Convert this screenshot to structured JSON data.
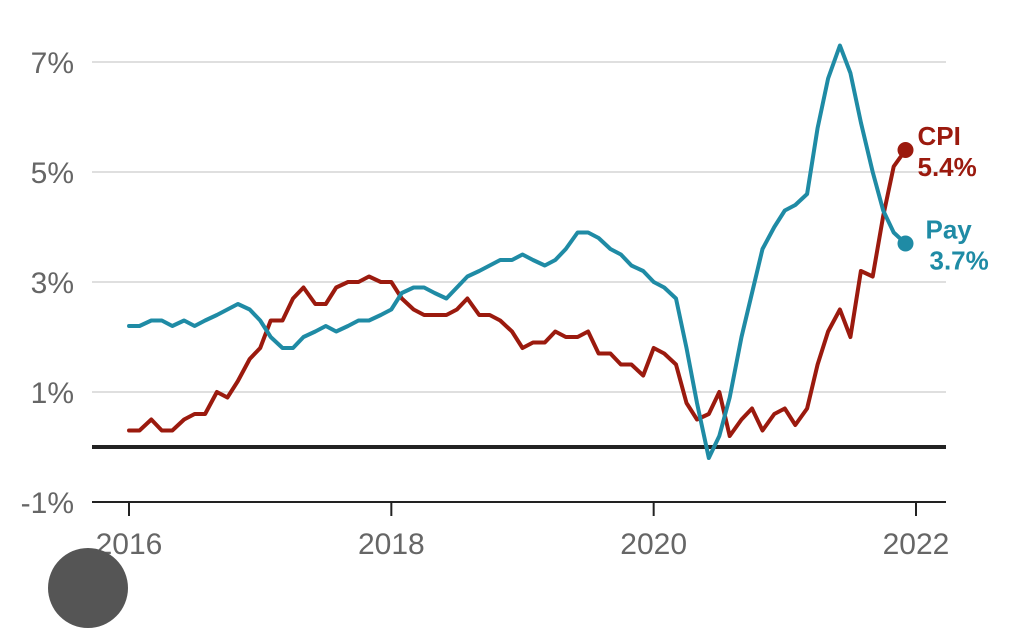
{
  "chart_data": {
    "type": "line",
    "title": "",
    "xlabel": "",
    "ylabel": "",
    "xlim": [
      2016,
      2022
    ],
    "ylim": [
      -1,
      7
    ],
    "y_ticks": [
      {
        "value": 7,
        "label": "7%"
      },
      {
        "value": 5,
        "label": "5%"
      },
      {
        "value": 3,
        "label": "3%"
      },
      {
        "value": 1,
        "label": "1%"
      },
      {
        "value": -1,
        "label": "-1%"
      }
    ],
    "x_ticks": [
      {
        "value": 2016,
        "label": "2016"
      },
      {
        "value": 2018,
        "label": "2018"
      },
      {
        "value": 2020,
        "label": "2020"
      },
      {
        "value": 2022,
        "label": "2022"
      }
    ],
    "grid": true,
    "zero_line": 0,
    "series": [
      {
        "name": "CPI",
        "end_value_label": "5.4%",
        "color": "#9b1a0e",
        "points": [
          [
            2016.0,
            0.3
          ],
          [
            2016.08,
            0.3
          ],
          [
            2016.17,
            0.5
          ],
          [
            2016.25,
            0.3
          ],
          [
            2016.33,
            0.3
          ],
          [
            2016.42,
            0.5
          ],
          [
            2016.5,
            0.6
          ],
          [
            2016.58,
            0.6
          ],
          [
            2016.67,
            1.0
          ],
          [
            2016.75,
            0.9
          ],
          [
            2016.83,
            1.2
          ],
          [
            2016.92,
            1.6
          ],
          [
            2017.0,
            1.8
          ],
          [
            2017.08,
            2.3
          ],
          [
            2017.17,
            2.3
          ],
          [
            2017.25,
            2.7
          ],
          [
            2017.33,
            2.9
          ],
          [
            2017.42,
            2.6
          ],
          [
            2017.5,
            2.6
          ],
          [
            2017.58,
            2.9
          ],
          [
            2017.67,
            3.0
          ],
          [
            2017.75,
            3.0
          ],
          [
            2017.83,
            3.1
          ],
          [
            2017.92,
            3.0
          ],
          [
            2018.0,
            3.0
          ],
          [
            2018.08,
            2.7
          ],
          [
            2018.17,
            2.5
          ],
          [
            2018.25,
            2.4
          ],
          [
            2018.33,
            2.4
          ],
          [
            2018.42,
            2.4
          ],
          [
            2018.5,
            2.5
          ],
          [
            2018.58,
            2.7
          ],
          [
            2018.67,
            2.4
          ],
          [
            2018.75,
            2.4
          ],
          [
            2018.83,
            2.3
          ],
          [
            2018.92,
            2.1
          ],
          [
            2019.0,
            1.8
          ],
          [
            2019.08,
            1.9
          ],
          [
            2019.17,
            1.9
          ],
          [
            2019.25,
            2.1
          ],
          [
            2019.33,
            2.0
          ],
          [
            2019.42,
            2.0
          ],
          [
            2019.5,
            2.1
          ],
          [
            2019.58,
            1.7
          ],
          [
            2019.67,
            1.7
          ],
          [
            2019.75,
            1.5
          ],
          [
            2019.83,
            1.5
          ],
          [
            2019.92,
            1.3
          ],
          [
            2020.0,
            1.8
          ],
          [
            2020.08,
            1.7
          ],
          [
            2020.17,
            1.5
          ],
          [
            2020.25,
            0.8
          ],
          [
            2020.33,
            0.5
          ],
          [
            2020.42,
            0.6
          ],
          [
            2020.5,
            1.0
          ],
          [
            2020.58,
            0.2
          ],
          [
            2020.67,
            0.5
          ],
          [
            2020.75,
            0.7
          ],
          [
            2020.83,
            0.3
          ],
          [
            2020.92,
            0.6
          ],
          [
            2021.0,
            0.7
          ],
          [
            2021.08,
            0.4
          ],
          [
            2021.17,
            0.7
          ],
          [
            2021.25,
            1.5
          ],
          [
            2021.33,
            2.1
          ],
          [
            2021.42,
            2.5
          ],
          [
            2021.5,
            2.0
          ],
          [
            2021.58,
            3.2
          ],
          [
            2021.67,
            3.1
          ],
          [
            2021.75,
            4.2
          ],
          [
            2021.83,
            5.1
          ],
          [
            2021.92,
            5.4
          ]
        ]
      },
      {
        "name": "Pay",
        "end_value_label": "3.7%",
        "color": "#1f8ba5",
        "points": [
          [
            2016.0,
            2.2
          ],
          [
            2016.08,
            2.2
          ],
          [
            2016.17,
            2.3
          ],
          [
            2016.25,
            2.3
          ],
          [
            2016.33,
            2.2
          ],
          [
            2016.42,
            2.3
          ],
          [
            2016.5,
            2.2
          ],
          [
            2016.58,
            2.3
          ],
          [
            2016.67,
            2.4
          ],
          [
            2016.75,
            2.5
          ],
          [
            2016.83,
            2.6
          ],
          [
            2016.92,
            2.5
          ],
          [
            2017.0,
            2.3
          ],
          [
            2017.08,
            2.0
          ],
          [
            2017.17,
            1.8
          ],
          [
            2017.25,
            1.8
          ],
          [
            2017.33,
            2.0
          ],
          [
            2017.42,
            2.1
          ],
          [
            2017.5,
            2.2
          ],
          [
            2017.58,
            2.1
          ],
          [
            2017.67,
            2.2
          ],
          [
            2017.75,
            2.3
          ],
          [
            2017.83,
            2.3
          ],
          [
            2017.92,
            2.4
          ],
          [
            2018.0,
            2.5
          ],
          [
            2018.08,
            2.8
          ],
          [
            2018.17,
            2.9
          ],
          [
            2018.25,
            2.9
          ],
          [
            2018.33,
            2.8
          ],
          [
            2018.42,
            2.7
          ],
          [
            2018.5,
            2.9
          ],
          [
            2018.58,
            3.1
          ],
          [
            2018.67,
            3.2
          ],
          [
            2018.75,
            3.3
          ],
          [
            2018.83,
            3.4
          ],
          [
            2018.92,
            3.4
          ],
          [
            2019.0,
            3.5
          ],
          [
            2019.08,
            3.4
          ],
          [
            2019.17,
            3.3
          ],
          [
            2019.25,
            3.4
          ],
          [
            2019.33,
            3.6
          ],
          [
            2019.42,
            3.9
          ],
          [
            2019.5,
            3.9
          ],
          [
            2019.58,
            3.8
          ],
          [
            2019.67,
            3.6
          ],
          [
            2019.75,
            3.5
          ],
          [
            2019.83,
            3.3
          ],
          [
            2019.92,
            3.2
          ],
          [
            2020.0,
            3.0
          ],
          [
            2020.08,
            2.9
          ],
          [
            2020.17,
            2.7
          ],
          [
            2020.25,
            1.8
          ],
          [
            2020.33,
            0.8
          ],
          [
            2020.42,
            -0.2
          ],
          [
            2020.5,
            0.2
          ],
          [
            2020.58,
            0.9
          ],
          [
            2020.67,
            2.0
          ],
          [
            2020.75,
            2.8
          ],
          [
            2020.83,
            3.6
          ],
          [
            2020.92,
            4.0
          ],
          [
            2021.0,
            4.3
          ],
          [
            2021.08,
            4.4
          ],
          [
            2021.17,
            4.6
          ],
          [
            2021.25,
            5.8
          ],
          [
            2021.33,
            6.7
          ],
          [
            2021.42,
            7.3
          ],
          [
            2021.5,
            6.8
          ],
          [
            2021.58,
            5.9
          ],
          [
            2021.67,
            5.0
          ],
          [
            2021.75,
            4.3
          ],
          [
            2021.83,
            3.9
          ],
          [
            2021.92,
            3.7
          ]
        ]
      }
    ]
  }
}
